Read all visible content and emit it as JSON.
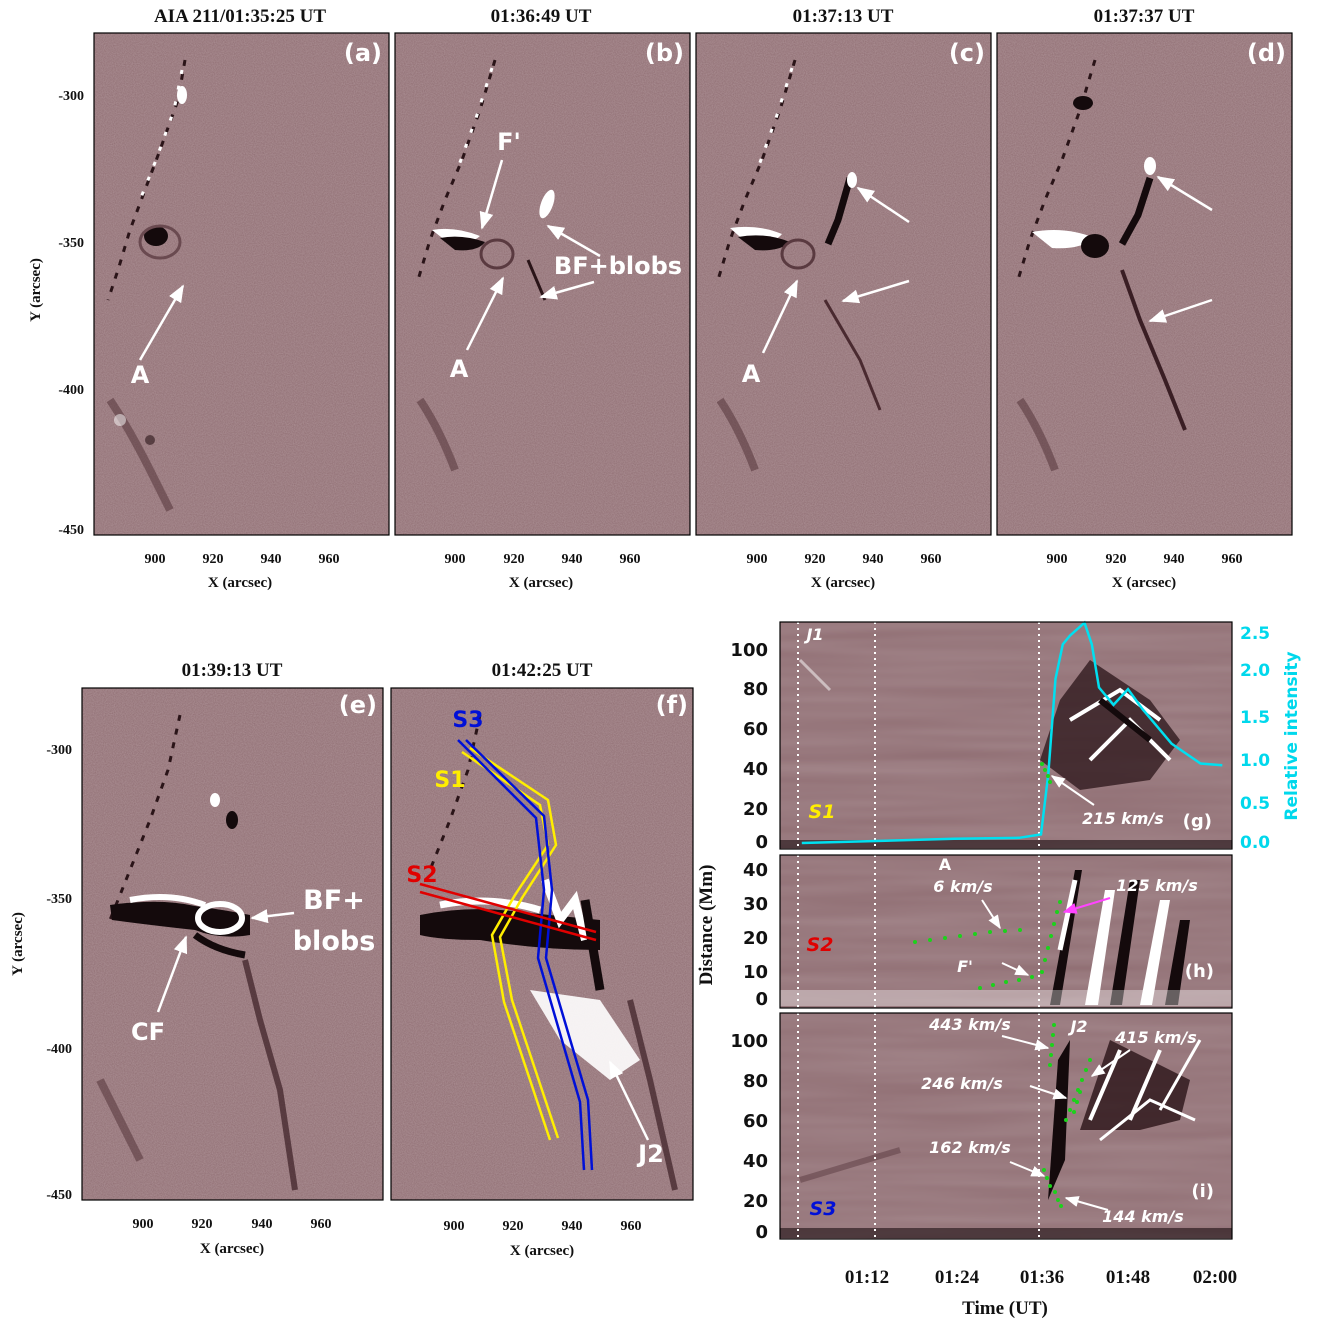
{
  "colors": {
    "background": "#8f6d72",
    "white_features": "#ffffff",
    "dark_features": "#1a0d10",
    "slit_s1": "#ffee00",
    "slit_s2": "#e00000",
    "slit_s3": "#0010d8",
    "intensity_curve": "#00e0f0",
    "fit_dots": "#1bd21b",
    "magenta_arrow": "#ff44ff"
  },
  "images": {
    "xlabel": "X (arcsec)",
    "ylabel": "Y (arcsec)",
    "xticks": [
      "900",
      "920",
      "940",
      "960"
    ],
    "yticks": [
      "-300",
      "-350",
      "-400",
      "-450"
    ],
    "panels": [
      {
        "id": "a",
        "title": "AIA 211/01:35:25 UT",
        "letter": "(a)"
      },
      {
        "id": "b",
        "title": "01:36:49 UT",
        "letter": "(b)"
      },
      {
        "id": "c",
        "title": "01:37:13 UT",
        "letter": "(c)"
      },
      {
        "id": "d",
        "title": "01:37:37 UT",
        "letter": "(d)"
      },
      {
        "id": "e",
        "title": "01:39:13 UT",
        "letter": "(e)"
      },
      {
        "id": "f",
        "title": "01:42:25 UT",
        "letter": "(f)"
      }
    ],
    "annotations": {
      "a_A": "A",
      "b_F": "F'",
      "b_BF": "BF+blobs",
      "b_A": "A",
      "c_A": "A",
      "e_BF1": "BF+",
      "e_BF2": "blobs",
      "e_CF": "CF",
      "f_S1": "S1",
      "f_S2": "S2",
      "f_S3": "S3",
      "f_J2": "J2"
    }
  },
  "timeslice": {
    "xlabel": "Time (UT)",
    "ylabel": "Distance (Mm)",
    "y2label": "Relative intensity",
    "xticks": [
      "01:12",
      "01:24",
      "01:36",
      "01:48",
      "02:00"
    ],
    "g": {
      "letter": "(g)",
      "slit": "S1",
      "event": "J1",
      "yticks": [
        "100",
        "80",
        "60",
        "40",
        "20",
        "0"
      ],
      "y2ticks": [
        "2.5",
        "2.0",
        "1.5",
        "1.0",
        "0.5",
        "0.0"
      ],
      "speed": "215 km/s"
    },
    "h": {
      "letter": "(h)",
      "slit": "S2",
      "marker_A": "A",
      "marker_F": "F'",
      "yticks": [
        "40",
        "30",
        "20",
        "10",
        "0"
      ],
      "speeds": [
        "6 km/s",
        "125 km/s"
      ]
    },
    "i": {
      "letter": "(i)",
      "slit": "S3",
      "event": "J2",
      "yticks": [
        "100",
        "80",
        "60",
        "40",
        "20",
        "0"
      ],
      "speeds": [
        "443 km/s",
        "415 km/s",
        "246 km/s",
        "162 km/s",
        "144 km/s"
      ]
    }
  },
  "chart_data": {
    "type": "line",
    "title": "",
    "xlabel": "Time (UT)",
    "ylabel": "Relative intensity",
    "series": [
      {
        "values": [
          {
            "t": "01:03",
            "v": 0.0
          },
          {
            "t": "01:12",
            "v": 0.02
          },
          {
            "t": "01:24",
            "v": 0.05
          },
          {
            "t": "01:33",
            "v": 0.06
          },
          {
            "t": "01:36",
            "v": 0.1
          },
          {
            "t": "01:37",
            "v": 0.8
          },
          {
            "t": "01:38",
            "v": 1.9
          },
          {
            "t": "01:39",
            "v": 2.3
          },
          {
            "t": "01:40",
            "v": 2.4
          },
          {
            "t": "01:42",
            "v": 2.55
          },
          {
            "t": "01:43",
            "v": 2.3
          },
          {
            "t": "01:44",
            "v": 1.8
          },
          {
            "t": "01:46",
            "v": 1.6
          },
          {
            "t": "01:48",
            "v": 1.78
          },
          {
            "t": "01:50",
            "v": 1.55
          },
          {
            "t": "01:54",
            "v": 1.15
          },
          {
            "t": "01:58",
            "v": 0.92
          },
          {
            "t": "02:01",
            "v": 0.9
          }
        ]
      }
    ],
    "ylim": [
      0,
      2.6
    ]
  }
}
